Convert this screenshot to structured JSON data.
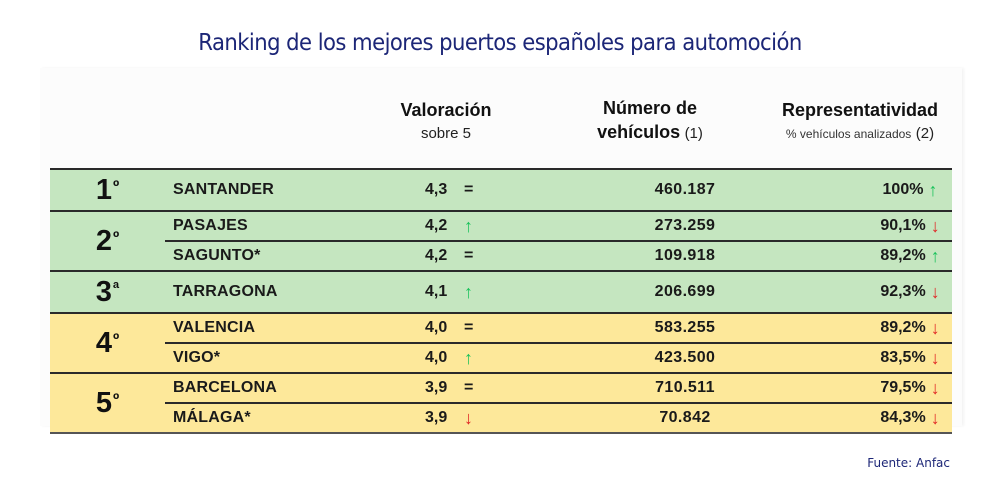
{
  "title": "Ranking de los mejores puertos españoles para automoción",
  "headers": {
    "valoracion": {
      "main": "Valoración",
      "sub": "sobre 5"
    },
    "numero": {
      "main_line1": "Número de",
      "main_line2": "vehículos",
      "note": "(1)"
    },
    "representatividad": {
      "main": "Representatividad",
      "sub": "% vehículos analizados",
      "note": "(2)"
    }
  },
  "colors": {
    "title": "#1c2677",
    "green_rows": "#c5e6c0",
    "yellow_rows": "#fde89a",
    "arrow_up": "#19c25a",
    "arrow_down": "#e02424"
  },
  "groups": [
    {
      "rank": "1",
      "suffix": "º",
      "color": "green",
      "rows": [
        {
          "port": "SANTANDER",
          "valoracion": "4,3",
          "val_trend": "=",
          "vehiculos": "460.187",
          "representatividad": "100%",
          "rep_trend": "↑"
        }
      ]
    },
    {
      "rank": "2",
      "suffix": "º",
      "color": "green",
      "rows": [
        {
          "port": "PASAJES",
          "valoracion": "4,2",
          "val_trend": "↑",
          "vehiculos": "273.259",
          "representatividad": "90,1%",
          "rep_trend": "↓"
        },
        {
          "port": "SAGUNTO*",
          "valoracion": "4,2",
          "val_trend": "=",
          "vehiculos": "109.918",
          "representatividad": "89,2%",
          "rep_trend": "↑"
        }
      ]
    },
    {
      "rank": "3",
      "suffix": "ª",
      "color": "green",
      "rows": [
        {
          "port": "TARRAGONA",
          "valoracion": "4,1",
          "val_trend": "↑",
          "vehiculos": "206.699",
          "representatividad": "92,3%",
          "rep_trend": "↓"
        }
      ]
    },
    {
      "rank": "4",
      "suffix": "º",
      "color": "yellow",
      "rows": [
        {
          "port": "VALENCIA",
          "valoracion": "4,0",
          "val_trend": "=",
          "vehiculos": "583.255",
          "representatividad": "89,2%",
          "rep_trend": "↓"
        },
        {
          "port": "VIGO*",
          "valoracion": "4,0",
          "val_trend": "↑",
          "vehiculos": "423.500",
          "representatividad": "83,5%",
          "rep_trend": "↓"
        }
      ]
    },
    {
      "rank": "5",
      "suffix": "º",
      "color": "yellow",
      "rows": [
        {
          "port": "BARCELONA",
          "valoracion": "3,9",
          "val_trend": "=",
          "vehiculos": "710.511",
          "representatividad": "79,5%",
          "rep_trend": "↓"
        },
        {
          "port": "MÁLAGA*",
          "valoracion": "3,9",
          "val_trend": "↓",
          "vehiculos": "70.842",
          "representatividad": "84,3%",
          "rep_trend": "↓"
        }
      ]
    }
  ],
  "source": "Fuente: Anfac"
}
